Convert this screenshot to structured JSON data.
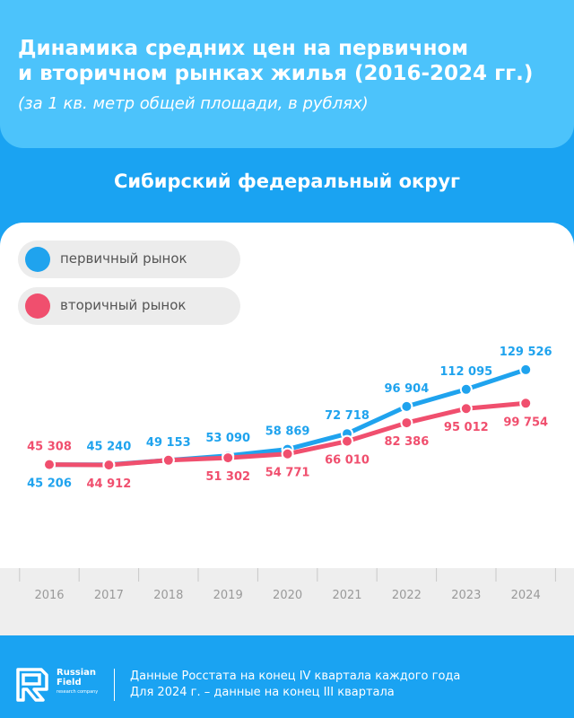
{
  "header": {
    "title_line1": "Динамика средних цен на первичном",
    "title_line2": "и вторичном рынках жилья (2016-2024 гг.)",
    "subtitle": "(за 1 кв. метр общей площади, в рублях)"
  },
  "region": "Сибирский федеральный округ",
  "colors": {
    "primary_market": "#1fa3ee",
    "secondary_market": "#f04f6e",
    "background": "#1aa3f2",
    "header": "#4cc3fb"
  },
  "chart_data": {
    "type": "line",
    "x": [
      "2016",
      "2017",
      "2018",
      "2019",
      "2020",
      "2021",
      "2022",
      "2023",
      "2024"
    ],
    "series": [
      {
        "name": "первичный рынок",
        "values": [
          45206,
          45240,
          49153,
          53090,
          58869,
          72718,
          96904,
          112095,
          129526
        ],
        "labels": [
          "45 206",
          "45 240",
          "49 153",
          "53 090",
          "58 869",
          "72 718",
          "96 904",
          "112 095",
          "129 526"
        ]
      },
      {
        "name": "вторичный рынок",
        "values": [
          45308,
          44912,
          49153,
          51302,
          54771,
          66010,
          82386,
          95012,
          99754
        ],
        "labels": [
          "45 308",
          "44 912",
          "",
          "51 302",
          "54 771",
          "66 010",
          "82 386",
          "95 012",
          "99 754"
        ]
      }
    ],
    "legend_position": "top-left",
    "grid": false
  },
  "footer": {
    "logo_line1": "Russian",
    "logo_line2": "Field",
    "logo_small": "research company",
    "note_line1": "Данные Росстата на конец IV квартала каждого года",
    "note_line2": "Для 2024 г. – данные на конец III квартала"
  }
}
